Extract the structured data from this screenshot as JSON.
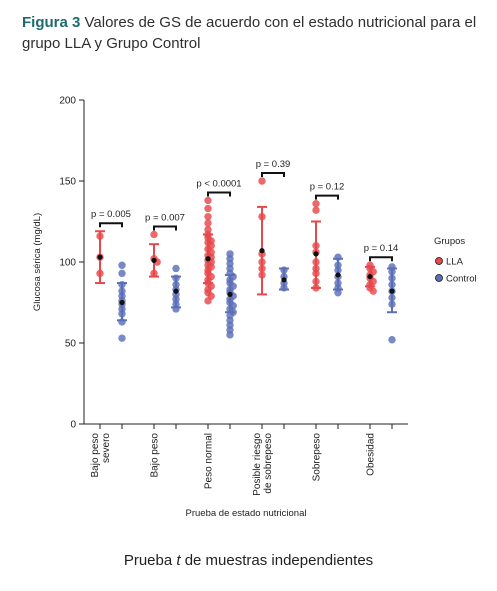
{
  "caption": {
    "label": "Figura 3",
    "text": " Valores de GS de acuerdo con el estado nutricional para el grupo LLA y Grupo Control"
  },
  "footnote": {
    "pre": "Prueba ",
    "t": "t",
    "post": " de muestras independientes"
  },
  "chart_data": {
    "type": "scatter",
    "ylabel": "Glucosa sérica (mg/dL)",
    "xlabel": "Prueba de estado nutricional",
    "ylim": [
      0,
      200
    ],
    "yticks": [
      0,
      50,
      100,
      150,
      200
    ],
    "categories": [
      [
        "Bajo peso",
        "severo"
      ],
      [
        "Bajo peso"
      ],
      [
        "Peso normal"
      ],
      [
        "Posible riesgo",
        "de sobrepeso"
      ],
      [
        "Sobrepeso"
      ],
      [
        "Obesidad"
      ]
    ],
    "legend": {
      "title": "Grupos",
      "position": "right",
      "entries": [
        {
          "name": "LLA",
          "color": "#e8474b"
        },
        {
          "name": "Control",
          "color": "#5b6fb8"
        }
      ]
    },
    "pvalues": [
      "p = 0.005",
      "p = 0.007",
      "p < 0.0001",
      "p = 0.39",
      "p = 0.12",
      "p = 0.14"
    ],
    "series": [
      {
        "name": "LLA",
        "color": "#e8474b",
        "groups": [
          {
            "mean": 103,
            "sd_low": 87,
            "sd_high": 119,
            "points": [
              116,
              103,
              93
            ]
          },
          {
            "mean": 101,
            "sd_low": 91,
            "sd_high": 111,
            "points": [
              117,
              102,
              100,
              93
            ]
          },
          {
            "mean": 102,
            "sd_low": 87,
            "sd_high": 117,
            "points": [
              138,
              133,
              128,
              124,
              120,
              117,
              115,
              113,
              112,
              110,
              108,
              106,
              104,
              103,
              101,
              100,
              98,
              97,
              95,
              93,
              91,
              89,
              87,
              85,
              83,
              81,
              79,
              76
            ]
          },
          {
            "mean": 107,
            "sd_low": 80,
            "sd_high": 134,
            "points": [
              150,
              128,
              105,
              100,
              96,
              92
            ]
          },
          {
            "mean": 105,
            "sd_low": 84,
            "sd_high": 125,
            "points": [
              136,
              132,
              110,
              106,
              100,
              96,
              93,
              88,
              84
            ]
          },
          {
            "mean": 91,
            "sd_low": 85,
            "sd_high": 97,
            "points": [
              98,
              96,
              94,
              92,
              90,
              88,
              86,
              84,
              82
            ]
          }
        ]
      },
      {
        "name": "Control",
        "color": "#5b6fb8",
        "groups": [
          {
            "mean": 75,
            "sd_low": 64,
            "sd_high": 87,
            "points": [
              98,
              93,
              86,
              82,
              79,
              76,
              74,
              71,
              68,
              63,
              53
            ]
          },
          {
            "mean": 82,
            "sd_low": 72,
            "sd_high": 91,
            "points": [
              96,
              90,
              86,
              83,
              80,
              77,
              74,
              71
            ]
          },
          {
            "mean": 80,
            "sd_low": 69,
            "sd_high": 92,
            "points": [
              105,
              102,
              99,
              96,
              93,
              91,
              89,
              87,
              85,
              83,
              81,
              79,
              77,
              75,
              73,
              71,
              69,
              67,
              64,
              61,
              58,
              55
            ]
          },
          {
            "mean": 89,
            "sd_low": 83,
            "sd_high": 96,
            "points": [
              95,
              91,
              87,
              84
            ]
          },
          {
            "mean": 92,
            "sd_low": 83,
            "sd_high": 102,
            "points": [
              103,
              98,
              95,
              91,
              87,
              84,
              81
            ]
          },
          {
            "mean": 82,
            "sd_low": 69,
            "sd_high": 96,
            "points": [
              97,
              94,
              90,
              86,
              82,
              78,
              74,
              52
            ]
          }
        ]
      }
    ]
  }
}
